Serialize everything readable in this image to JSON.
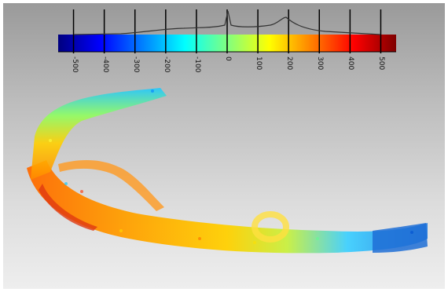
{
  "colorbar": {
    "ticks": [
      "-500",
      "-400",
      "-300",
      "-200",
      "-100",
      "0",
      "100",
      "200",
      "300",
      "400",
      "500"
    ],
    "colors": [
      "#00007f",
      "#0000ff",
      "#0080ff",
      "#00ffff",
      "#80ff80",
      "#ffff00",
      "#ff8000",
      "#ff0000",
      "#7f0000"
    ]
  },
  "scene": {
    "subject": "3d-point-cloud",
    "background": [
      "#9a9a9a",
      "#eeeeee"
    ]
  }
}
